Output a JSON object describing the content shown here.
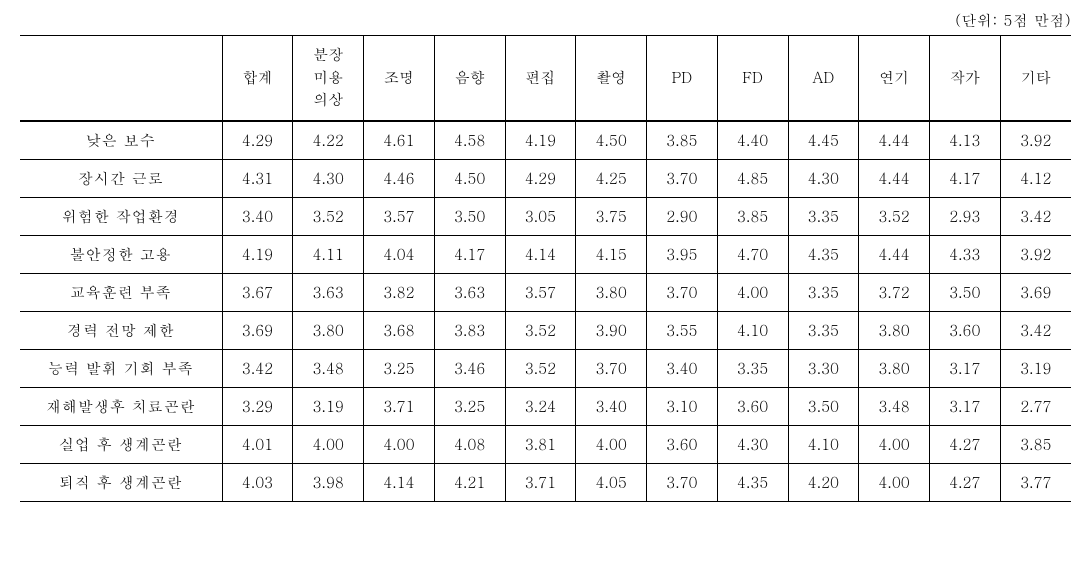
{
  "unit_note": "(단위: 5점 만점)",
  "columns": [
    "",
    "합계",
    "분장\n미용\n의상",
    "조명",
    "음향",
    "편집",
    "촬영",
    "PD",
    "FD",
    "AD",
    "연기",
    "작가",
    "기타"
  ],
  "rows": [
    {
      "label": "낮은 보수",
      "values": [
        "4.29",
        "4.22",
        "4.61",
        "4.58",
        "4.19",
        "4.50",
        "3.85",
        "4.40",
        "4.45",
        "4.44",
        "4.13",
        "3.92"
      ]
    },
    {
      "label": "장시간 근로",
      "values": [
        "4.31",
        "4.30",
        "4.46",
        "4.50",
        "4.29",
        "4.25",
        "3.70",
        "4.85",
        "4.30",
        "4.44",
        "4.17",
        "4.12"
      ]
    },
    {
      "label": "위험한 작업환경",
      "values": [
        "3.40",
        "3.52",
        "3.57",
        "3.50",
        "3.05",
        "3.75",
        "2.90",
        "3.85",
        "3.35",
        "3.52",
        "2.93",
        "3.42"
      ]
    },
    {
      "label": "불안정한 고용",
      "values": [
        "4.19",
        "4.11",
        "4.04",
        "4.17",
        "4.14",
        "4.15",
        "3.95",
        "4.70",
        "4.35",
        "4.44",
        "4.33",
        "3.92"
      ]
    },
    {
      "label": "교육훈련 부족",
      "values": [
        "3.67",
        "3.63",
        "3.82",
        "3.63",
        "3.57",
        "3.80",
        "3.70",
        "4.00",
        "3.35",
        "3.72",
        "3.50",
        "3.69"
      ]
    },
    {
      "label": "경력 전망 제한",
      "values": [
        "3.69",
        "3.80",
        "3.68",
        "3.83",
        "3.52",
        "3.90",
        "3.55",
        "4.10",
        "3.35",
        "3.80",
        "3.60",
        "3.42"
      ]
    },
    {
      "label": "능력 발휘 기회 부족",
      "values": [
        "3.42",
        "3.48",
        "3.25",
        "3.46",
        "3.52",
        "3.70",
        "3.40",
        "3.35",
        "3.30",
        "3.80",
        "3.17",
        "3.19"
      ]
    },
    {
      "label": "재해발생후 치료곤란",
      "values": [
        "3.29",
        "3.19",
        "3.71",
        "3.25",
        "3.24",
        "3.40",
        "3.10",
        "3.60",
        "3.50",
        "3.48",
        "3.17",
        "2.77"
      ]
    },
    {
      "label": "실업 후 생계곤란",
      "values": [
        "4.01",
        "4.00",
        "4.00",
        "4.08",
        "3.81",
        "4.00",
        "3.60",
        "4.30",
        "4.10",
        "4.00",
        "4.27",
        "3.85"
      ]
    },
    {
      "label": "퇴직 후 생계곤란",
      "values": [
        "4.03",
        "3.98",
        "4.14",
        "4.21",
        "3.71",
        "4.05",
        "3.70",
        "4.35",
        "4.20",
        "4.00",
        "4.27",
        "3.77"
      ]
    }
  ]
}
